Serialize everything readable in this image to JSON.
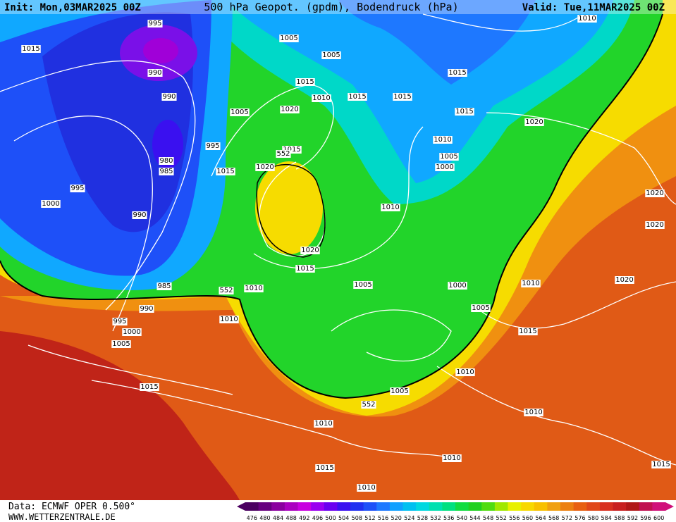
{
  "header": {
    "init": "Init: Mon,03MAR2025 00Z",
    "title": "500 hPa Geopot. (gpdm), Bodendruck (hPa)",
    "valid": "Valid: Tue,11MAR2025 00Z"
  },
  "map": {
    "isobar_labels": [
      "995",
      "1015",
      "1005",
      "1005",
      "1010",
      "990",
      "1015",
      "1015",
      "990",
      "1010",
      "1015",
      "1015",
      "1005",
      "1020",
      "1015",
      "1020",
      "1010",
      "995",
      "1015",
      "1005",
      "980",
      "1020",
      "985",
      "1015",
      "1000",
      "995",
      "1020",
      "1000",
      "1010",
      "990",
      "1020",
      "1020",
      "1015",
      "1020",
      "1010",
      "1005",
      "1000",
      "985",
      "1010",
      "990",
      "1005",
      "995",
      "1010",
      "1000",
      "1015",
      "1005",
      "1010",
      "1015",
      "1005",
      "1010",
      "1010",
      "1010",
      "1015",
      "1015",
      "1010"
    ],
    "contour_labels": [
      "552",
      "552",
      "552"
    ]
  },
  "footer": {
    "data": "Data: ECMWF OPER 0.500°",
    "site": "WWW.WETTERZENTRALE.DE"
  },
  "scale": {
    "labels": [
      476,
      480,
      484,
      488,
      492,
      496,
      500,
      504,
      508,
      512,
      516,
      520,
      524,
      528,
      532,
      536,
      540,
      544,
      548,
      552,
      556,
      560,
      564,
      568,
      572,
      576,
      580,
      584,
      588,
      592,
      596,
      600
    ],
    "colors": [
      "#4a0060",
      "#66007f",
      "#8a009f",
      "#aa00c0",
      "#c800e0",
      "#9a00f0",
      "#6a00f0",
      "#3a10f0",
      "#2030f0",
      "#1e50f8",
      "#1e78ff",
      "#10a0ff",
      "#00c0f0",
      "#00d8e0",
      "#00e0b0",
      "#00e080",
      "#10dc40",
      "#20d020",
      "#50dc10",
      "#a0e800",
      "#e8f000",
      "#f8d800",
      "#f8c000",
      "#f0a010",
      "#ec8010",
      "#e86010",
      "#e04818",
      "#d83020",
      "#c82020",
      "#b01818",
      "#c01050",
      "#d0107a"
    ]
  }
}
